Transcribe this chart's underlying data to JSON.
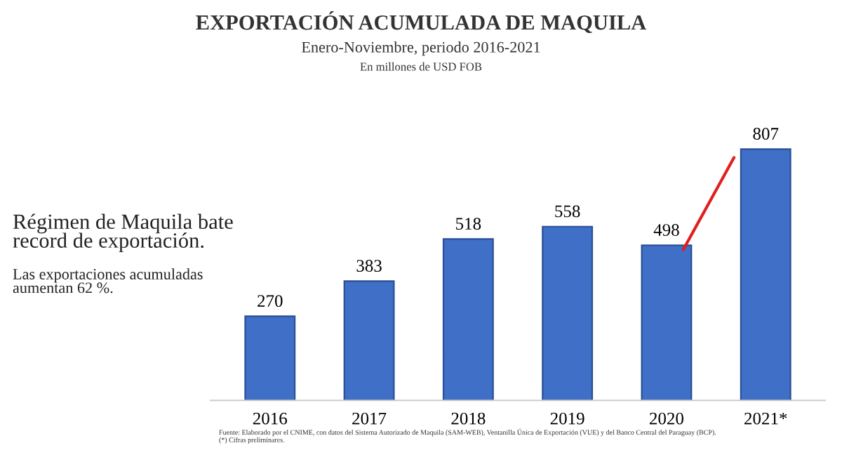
{
  "chart_data": {
    "type": "bar",
    "title": "EXPORTACIÓN ACUMULADA DE MAQUILA",
    "subtitle": "Enero-Noviembre, periodo 2016-2021\nEn millones de USD FOB",
    "categories": [
      "2016",
      "2017",
      "2018",
      "2019",
      "2020",
      "2021*"
    ],
    "values": [
      270,
      383,
      518,
      558,
      498,
      807
    ],
    "color": "#3f6fc6",
    "data_labels": true,
    "grid": false,
    "legend": false,
    "annotations": [
      "Régimen de Maquila bate\nrecord de exportación.",
      "Las exportaciones acumuladas\naumentan 62 %.",
      "Fuente: Elaborado por el CNIME, con datos del Sistema Autorizado de Maquila (SAM-WEB), Ventanilla Única de Exportación (VUE) y del Banco Central del Paraguay (BCP).\n(*) Cifras preliminares."
    ]
  }
}
